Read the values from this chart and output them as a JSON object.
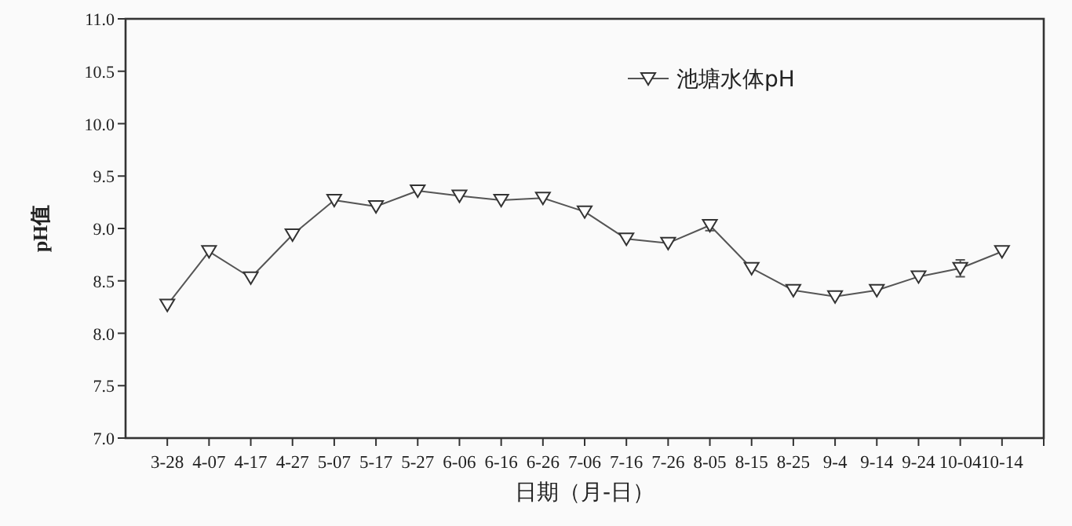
{
  "chart_data": {
    "type": "line",
    "xlabel": "日期（月-日）",
    "ylabel": "pH值",
    "categories": [
      "3-28",
      "4-07",
      "4-17",
      "4-27",
      "5-07",
      "5-17",
      "5-27",
      "6-06",
      "6-16",
      "6-26",
      "7-06",
      "7-16",
      "7-26",
      "8-05",
      "8-15",
      "8-25",
      "9-4",
      "9-14",
      "9-24",
      "10-04",
      "10-14"
    ],
    "series": [
      {
        "name": "池塘水体pH",
        "color": "#555555",
        "values": [
          8.27,
          8.78,
          8.53,
          8.94,
          9.27,
          9.21,
          9.36,
          9.31,
          9.27,
          9.29,
          9.16,
          8.9,
          8.86,
          9.03,
          8.62,
          8.41,
          8.35,
          8.41,
          8.54,
          8.62,
          8.78
        ],
        "errors": [
          null,
          null,
          null,
          null,
          null,
          null,
          null,
          null,
          null,
          null,
          null,
          null,
          null,
          0.05,
          null,
          null,
          null,
          null,
          null,
          0.08,
          null
        ]
      }
    ],
    "ylim": [
      7.0,
      11.0
    ],
    "yticks": [
      {
        "value": 7,
        "label": "7.0"
      },
      {
        "value": 7.5,
        "label": "7.5"
      },
      {
        "value": 8,
        "label": "8.0"
      },
      {
        "value": 8.5,
        "label": "8.5"
      },
      {
        "value": 9,
        "label": "9.0"
      },
      {
        "value": 9.5,
        "label": "9.5"
      },
      {
        "value": 10,
        "label": "10.0"
      },
      {
        "value": 10.5,
        "label": "10.5"
      },
      {
        "value": 11,
        "label": "11.0"
      }
    ],
    "legend": "top right",
    "marker": "triangle",
    "line_style": "solid",
    "grid": false
  }
}
